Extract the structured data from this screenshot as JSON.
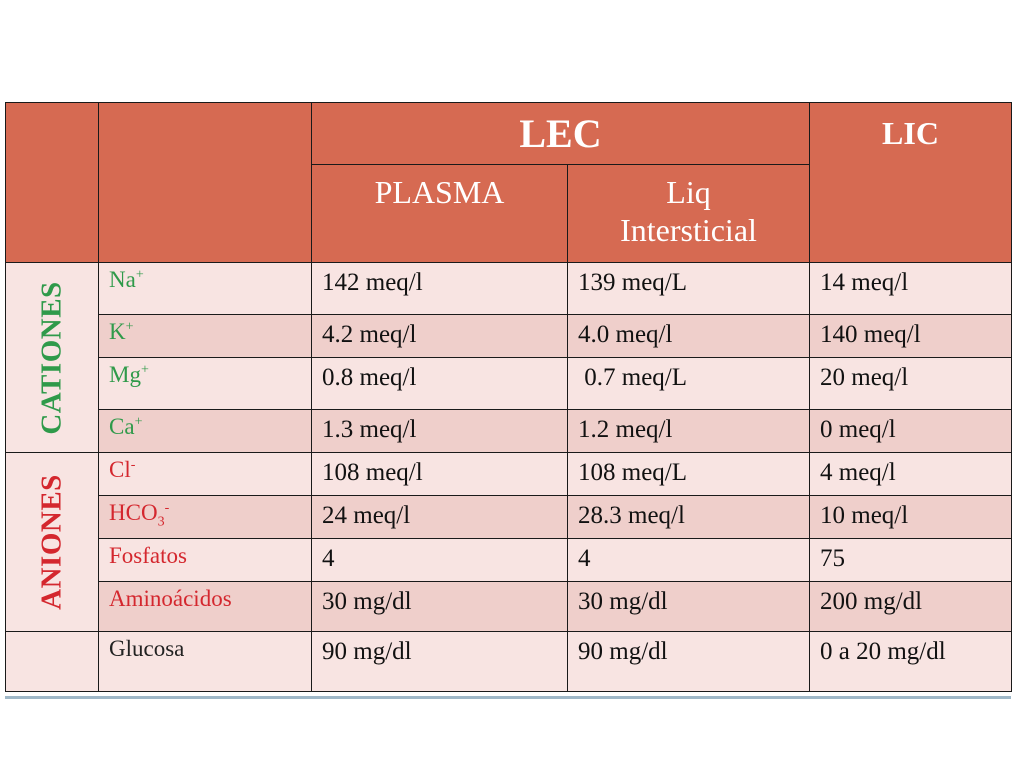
{
  "header": {
    "lec": "LEC",
    "lic": "LIC",
    "plasma": "PLASMA",
    "intersticial_line1": "Liq",
    "intersticial_line2": "Intersticial"
  },
  "groups": {
    "cationes": "CATIONES",
    "aniones": "ANIONES"
  },
  "rows": [
    {
      "ion": "Na",
      "ion_sup": "+",
      "ion_sub": "",
      "plasma": "142 meq/l",
      "intersticial": "139 meq/L",
      "lic": "14 meq/l"
    },
    {
      "ion": "K",
      "ion_sup": "+",
      "ion_sub": "",
      "plasma": "4.2 meq/l",
      "intersticial": "4.0 meq/l",
      "lic": "140 meq/l"
    },
    {
      "ion": "Mg",
      "ion_sup": "+",
      "ion_sub": "",
      "plasma": "0.8 meq/l",
      "intersticial": " 0.7 meq/L",
      "lic": "20 meq/l"
    },
    {
      "ion": "Ca",
      "ion_sup": "+",
      "ion_sub": "",
      "plasma": "1.3 meq/l",
      "intersticial": "1.2 meq/l",
      "lic": "0 meq/l"
    },
    {
      "ion": "Cl",
      "ion_sup": "-",
      "ion_sub": "",
      "plasma": "108 meq/l",
      "intersticial": "108 meq/L",
      "lic": "4 meq/l"
    },
    {
      "ion": "HCO",
      "ion_sup": "-",
      "ion_sub": "3",
      "plasma": "24 meq/l",
      "intersticial": "28.3 meq/l",
      "lic": "10 meq/l"
    },
    {
      "ion": "Fosfatos",
      "ion_sup": "",
      "ion_sub": "",
      "plasma": "4",
      "intersticial": "4",
      "lic": "75"
    },
    {
      "ion": "Aminoácidos",
      "ion_sup": "",
      "ion_sub": "",
      "plasma": "30 mg/dl",
      "intersticial": "30 mg/dl",
      "lic": "200 mg/dl"
    },
    {
      "ion": "Glucosa",
      "ion_sup": "",
      "ion_sub": "",
      "plasma": "90 mg/dl",
      "intersticial": "90 mg/dl",
      "lic": "0 a 20 mg/dl"
    }
  ],
  "colors": {
    "header_bg": "#d66a52",
    "row_light": "#f8e4e2",
    "row_dark": "#efcfcb",
    "cation_green": "#2f9a4a",
    "anion_red": "#d4272e"
  }
}
